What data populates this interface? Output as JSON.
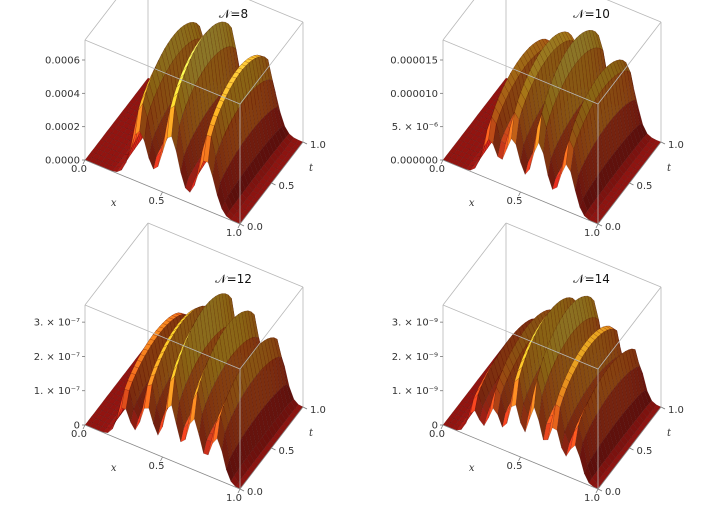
{
  "chart_data": [
    {
      "type": "surface3d",
      "title": "𝒩=8",
      "xlabel": "x",
      "tlabel": "t",
      "x_ticks": [
        "0.0",
        "0.5",
        "1.0"
      ],
      "t_ticks": [
        "0.0",
        "0.5",
        "1.0"
      ],
      "z_ticks": [
        "0.0000",
        "0.0002",
        "0.0004",
        "0.0006"
      ],
      "z_tick_values": [
        0,
        0.0002,
        0.0004,
        0.0006
      ],
      "x_range": [
        0,
        1
      ],
      "t_range": [
        0,
        1
      ],
      "z_range": [
        0,
        0.00072
      ],
      "peak_x": [
        0.35,
        0.55,
        0.78
      ],
      "peak_heights": [
        0.00062,
        0.00072,
        0.0006
      ],
      "colormap": [
        "#7a0c0c",
        "#c4261a",
        "#ef6a1c",
        "#f9b624",
        "#ffe85a"
      ]
    },
    {
      "type": "surface3d",
      "title": "𝒩=10",
      "xlabel": "x",
      "tlabel": "t",
      "x_ticks": [
        "0.0",
        "0.5",
        "1.0"
      ],
      "t_ticks": [
        "0.0",
        "0.5",
        "1.0"
      ],
      "z_ticks": [
        "0.000000",
        "5. × 10⁻⁶",
        "0.000010",
        "0.000015"
      ],
      "z_tick_values": [
        0,
        5e-06,
        1e-05,
        1.5e-05
      ],
      "x_range": [
        0,
        1
      ],
      "t_range": [
        0,
        1
      ],
      "z_range": [
        0,
        1.8e-05
      ],
      "peak_x": [
        0.3,
        0.45,
        0.62,
        0.8
      ],
      "peak_heights": [
        1.2e-05,
        1.5e-05,
        1.7e-05,
        1.4e-05
      ],
      "colormap": [
        "#7a0c0c",
        "#c4261a",
        "#ef6a1c",
        "#f9b624",
        "#ffe85a"
      ]
    },
    {
      "type": "surface3d",
      "title": "𝒩=12",
      "xlabel": "x",
      "tlabel": "t",
      "x_ticks": [
        "0.0",
        "0.5",
        "1.0"
      ],
      "t_ticks": [
        "0.0",
        "0.5",
        "1.0"
      ],
      "z_ticks": [
        "0",
        "1. × 10⁻⁷",
        "2. × 10⁻⁷",
        "3. × 10⁻⁷"
      ],
      "z_tick_values": [
        0,
        1e-07,
        2e-07,
        3e-07
      ],
      "x_range": [
        0,
        1
      ],
      "t_range": [
        0,
        1
      ],
      "z_range": [
        0,
        3.5e-07
      ],
      "peak_x": [
        0.25,
        0.4,
        0.55,
        0.7,
        0.85
      ],
      "peak_heights": [
        2e-07,
        2.6e-07,
        3.3e-07,
        3e-07,
        2.4e-07
      ],
      "colormap": [
        "#7a0c0c",
        "#c4261a",
        "#ef6a1c",
        "#f9b624",
        "#ffe85a"
      ]
    },
    {
      "type": "surface3d",
      "title": "𝒩=14",
      "xlabel": "x",
      "tlabel": "t",
      "x_ticks": [
        "0.0",
        "0.5",
        "1.0"
      ],
      "t_ticks": [
        "0.0",
        "0.5",
        "1.0"
      ],
      "z_ticks": [
        "0",
        "1. × 10⁻⁹",
        "2. × 10⁻⁹",
        "3. × 10⁻⁹"
      ],
      "z_tick_values": [
        0,
        1e-09,
        2e-09,
        3e-09
      ],
      "x_range": [
        0,
        1
      ],
      "t_range": [
        0,
        1
      ],
      "z_range": [
        0,
        3.5e-09
      ],
      "peak_x": [
        0.2,
        0.33,
        0.46,
        0.59,
        0.72,
        0.85
      ],
      "peak_heights": [
        1.6e-09,
        2.2e-09,
        3e-09,
        3.2e-09,
        2.6e-09,
        2e-09
      ],
      "colormap": [
        "#7a0c0c",
        "#c4261a",
        "#ef6a1c",
        "#f9b624",
        "#ffe85a"
      ]
    }
  ]
}
